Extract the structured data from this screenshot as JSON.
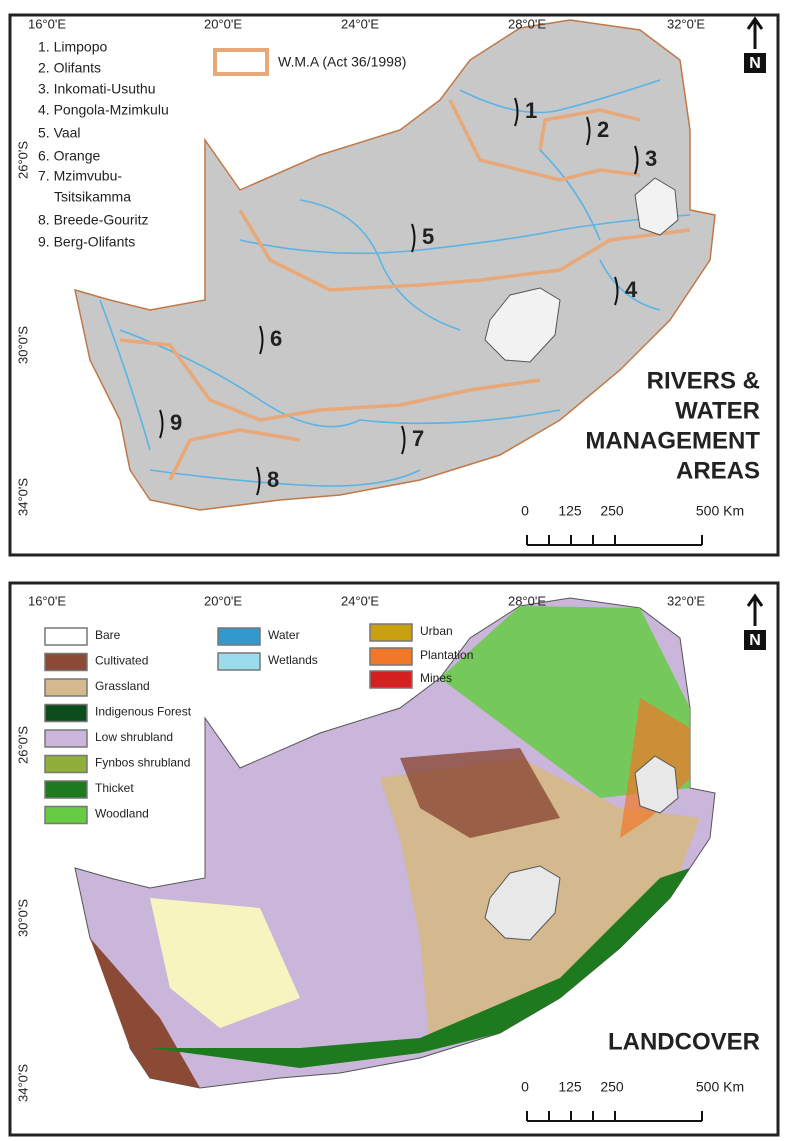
{
  "axes": {
    "longitude_ticks": [
      "16°0'E",
      "20°0'E",
      "24°0'E",
      "28°0'E",
      "32°0'E"
    ],
    "latitude_ticks": [
      "26°0'S",
      "30°0'S",
      "34°0'S"
    ],
    "north": "N",
    "scale_labels": [
      "0",
      "125",
      "250",
      "500 Km"
    ]
  },
  "rivers_map": {
    "title_lines": [
      "RIVERS &",
      "WATER",
      "MANAGEMENT",
      "AREAS"
    ],
    "wma_list": [
      "1. Limpopo",
      "2. Olifants",
      "3. Inkomati-Usuthu",
      "4. Pongola-Mzimkulu",
      "5. Vaal",
      "6. Orange",
      "7. Mzimvubu-",
      "Tsitsikamma",
      "8. Breede-Gouritz",
      "9. Berg-Olifants"
    ],
    "boundary_legend": "W.M.A (Act 36/1998)",
    "boundary_color": "#e8a878",
    "river_color": "#5ab4e6",
    "area_labels": [
      "1",
      "2",
      "3",
      "4",
      "5",
      "6",
      "7",
      "8",
      "9"
    ]
  },
  "landcover_map": {
    "title": "LANDCOVER",
    "legend": [
      {
        "name": "Bare",
        "color": "#ffffff"
      },
      {
        "name": "Cultivated",
        "color": "#8b4a36"
      },
      {
        "name": "Grassland",
        "color": "#d4b88e"
      },
      {
        "name": "Indigenous Forest",
        "color": "#0c4d1c"
      },
      {
        "name": "Low shrubland",
        "color": "#c9b6da"
      },
      {
        "name": "Fynbos shrubland",
        "color": "#8fae3a"
      },
      {
        "name": "Thicket",
        "color": "#1e7a1e"
      },
      {
        "name": "Woodland",
        "color": "#66cc44"
      },
      {
        "name": "Water",
        "color": "#3399cc"
      },
      {
        "name": "Wetlands",
        "color": "#9bdcec"
      },
      {
        "name": "Urban",
        "color": "#c8a010"
      },
      {
        "name": "Plantation",
        "color": "#f07828"
      },
      {
        "name": "Mines",
        "color": "#d42020"
      }
    ]
  }
}
